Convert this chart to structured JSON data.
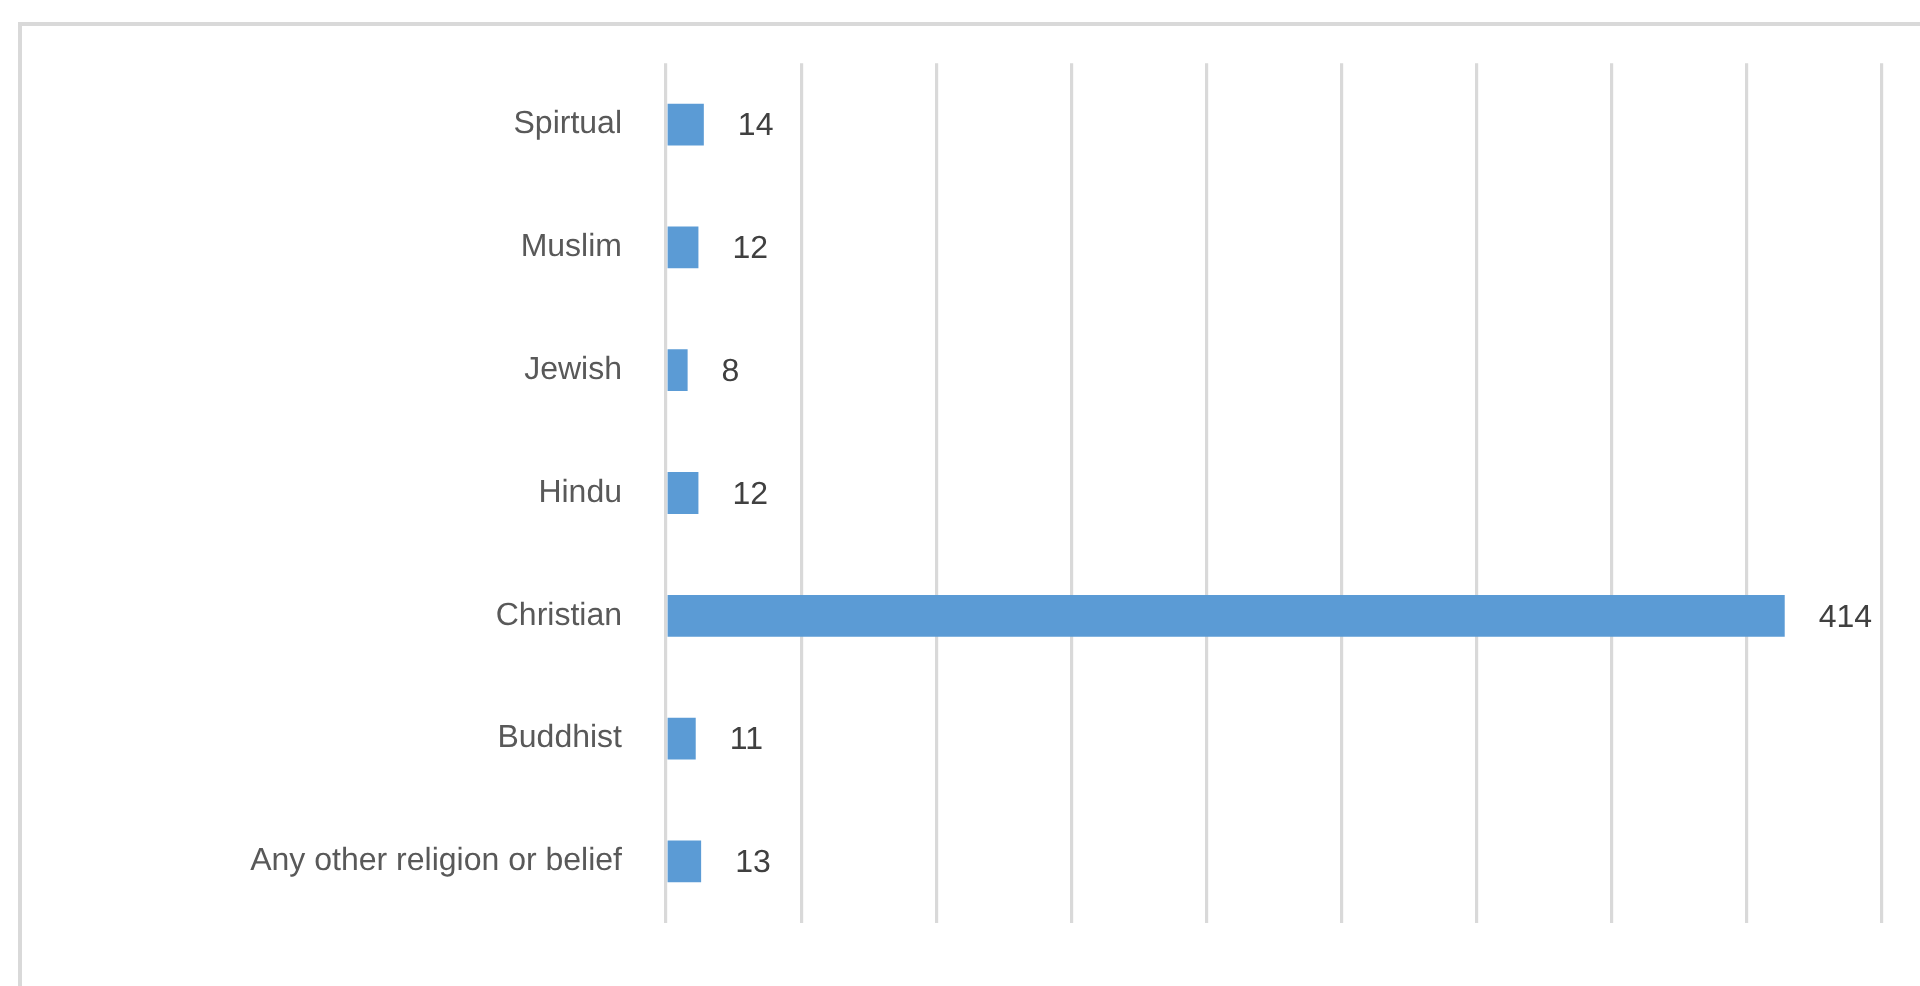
{
  "chart_data": {
    "type": "bar",
    "orientation": "horizontal",
    "categories": [
      "Spirtual",
      "Muslim",
      "Jewish",
      "Hindu",
      "Christian",
      "Buddhist",
      "Any other religion or belief"
    ],
    "values": [
      14,
      12,
      8,
      12,
      414,
      11,
      13
    ],
    "color": "#5b9bd5",
    "xlim": [
      0,
      450
    ],
    "xticks": [
      {
        "value": 0,
        "label": null
      },
      {
        "value": 50,
        "label": null
      },
      {
        "value": 100,
        "label": null
      },
      {
        "value": 150,
        "label": null
      },
      {
        "value": 200,
        "label": null
      },
      {
        "value": 250,
        "label": null
      },
      {
        "value": 300,
        "label": null
      },
      {
        "value": 350,
        "label": null
      },
      {
        "value": 400,
        "label": null
      },
      {
        "value": 450,
        "label": null
      }
    ],
    "grid": "x",
    "tick_labels": "y",
    "data_labels": true
  }
}
